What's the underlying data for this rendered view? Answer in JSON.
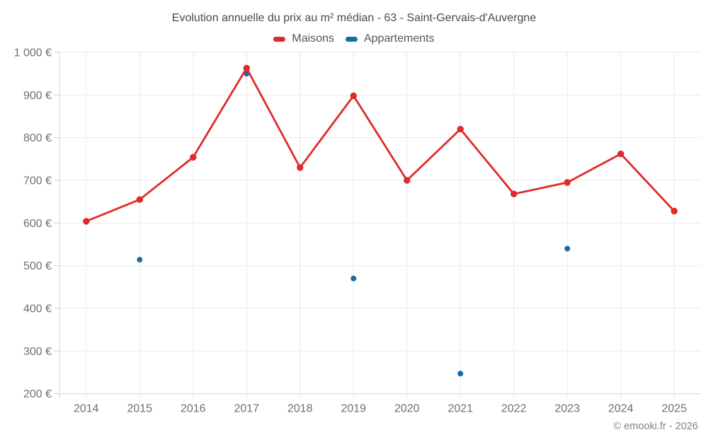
{
  "chart_data": {
    "type": "line",
    "title": "Evolution annuelle du prix au m² médian - 63 - Saint-Gervais-d'Auvergne",
    "watermark": "© emooki.fr - 2026",
    "categories": [
      "2014",
      "2015",
      "2016",
      "2017",
      "2018",
      "2019",
      "2020",
      "2021",
      "2022",
      "2023",
      "2024",
      "2025"
    ],
    "series": [
      {
        "name": "Maisons",
        "color": "#e02a2a",
        "mode": "line+markers",
        "values": [
          604,
          655,
          754,
          963,
          730,
          898,
          700,
          820,
          668,
          695,
          762,
          628
        ]
      },
      {
        "name": "Appartements",
        "color": "#1b6ba3",
        "mode": "markers",
        "values": [
          null,
          514,
          null,
          950,
          null,
          470,
          null,
          247,
          null,
          540,
          null,
          null
        ]
      }
    ],
    "ylim": [
      200,
      1000
    ],
    "ytick_step": 100,
    "ytick_labels": [
      "200 €",
      "300 €",
      "400 €",
      "500 €",
      "600 €",
      "700 €",
      "800 €",
      "900 €",
      "1 000 €"
    ],
    "xlabel": "",
    "ylabel": "",
    "grid": true,
    "legend_position": "top",
    "colors": {
      "grid": "#e9e9e9",
      "axis": "#cfcfcf",
      "tick_label": "#6f6f6f"
    }
  }
}
